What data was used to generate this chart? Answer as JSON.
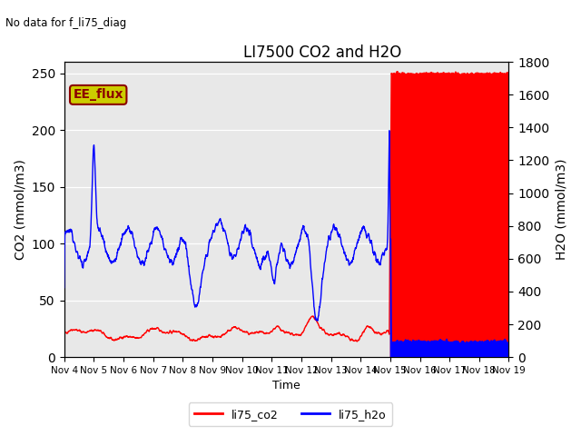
{
  "title": "LI7500 CO2 and H2O",
  "xlabel": "Time",
  "ylabel_left": "CO2 (mmol/m3)",
  "ylabel_right": "H2O (mmol/m3)",
  "ylim_left": [
    0,
    260
  ],
  "ylim_right": [
    0,
    1800
  ],
  "no_data_text": "No data for f_li75_diag",
  "ee_flux_label": "EE_flux",
  "legend_labels": [
    "li75_co2",
    "li75_h2o"
  ],
  "total_days": 15,
  "cutoff_day": 11,
  "x_tick_labels": [
    "Nov 4",
    "Nov 5",
    "Nov 6",
    "Nov 7",
    "Nov 8",
    "Nov 9",
    "Nov 10",
    "Nov 11",
    "Nov 12",
    "Nov 13",
    "Nov 14",
    "Nov 15",
    "Nov 16",
    "Nov 17",
    "Nov 18",
    "Nov 19"
  ],
  "plot_bg_color": "#e8e8e8",
  "ee_flux_bg": "#cccc00",
  "ee_flux_edge": "#8b0000",
  "figsize": [
    6.4,
    4.8
  ],
  "dpi": 100
}
